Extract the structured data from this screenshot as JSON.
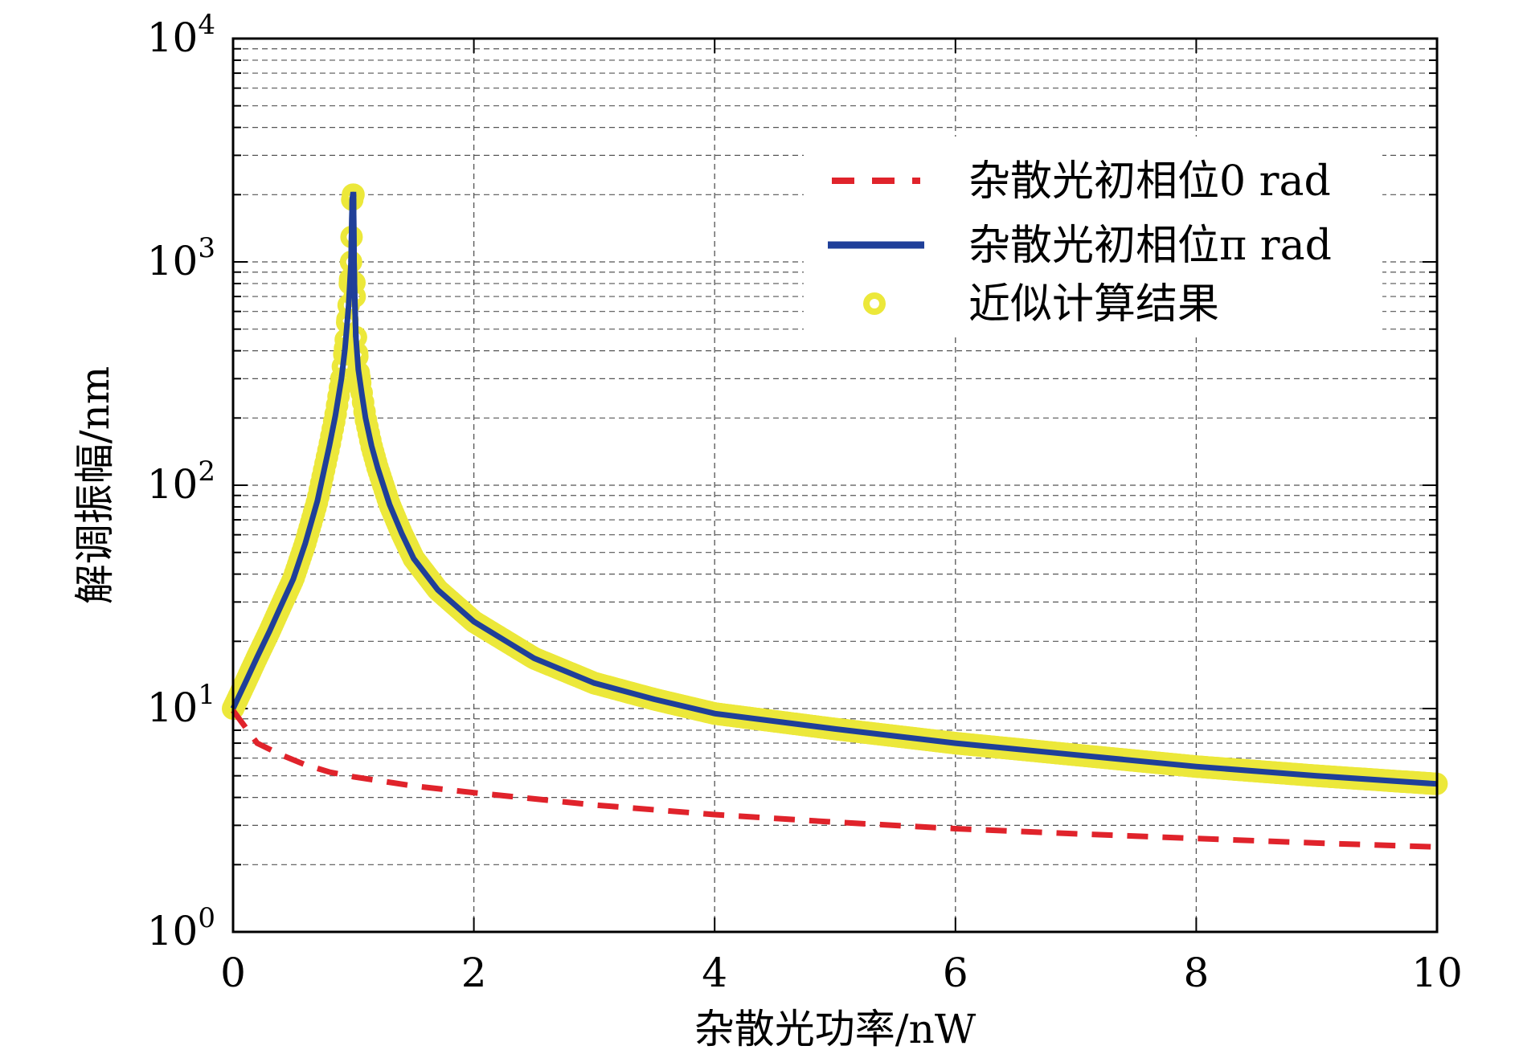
{
  "chart_data": {
    "type": "line",
    "xlabel": "杂散光功率/nW",
    "ylabel": "解调振幅/nm",
    "xlim": [
      0,
      10
    ],
    "ylim": [
      1,
      10000
    ],
    "yscale": "log",
    "grid": true,
    "legend_position": "top-right",
    "x_ticks": [
      "0",
      "2",
      "4",
      "6",
      "8",
      "10"
    ],
    "y_ticks": [
      {
        "base": "10",
        "exp": "0"
      },
      {
        "base": "10",
        "exp": "1"
      },
      {
        "base": "10",
        "exp": "2"
      },
      {
        "base": "10",
        "exp": "3"
      },
      {
        "base": "10",
        "exp": "4"
      }
    ],
    "series": [
      {
        "name": "杂散光初相位0 rad",
        "style": "dashed",
        "color": "#e0232b",
        "x": [
          0,
          0.2,
          0.4,
          0.6,
          0.8,
          1.0,
          1.5,
          2,
          3,
          4,
          5,
          6,
          7,
          8,
          9,
          10
        ],
        "y": [
          9.8,
          7.0,
          6.2,
          5.6,
          5.2,
          4.95,
          4.5,
          4.2,
          3.7,
          3.35,
          3.1,
          2.9,
          2.75,
          2.62,
          2.5,
          2.4
        ]
      },
      {
        "name": "杂散光初相位π rad",
        "style": "solid",
        "color": "#1f3f99",
        "x": [
          0,
          0.1,
          0.2,
          0.3,
          0.4,
          0.5,
          0.6,
          0.7,
          0.8,
          0.85,
          0.9,
          0.93,
          0.96,
          0.98,
          0.99,
          0.995,
          1.0,
          1.005,
          1.01,
          1.02,
          1.04,
          1.07,
          1.1,
          1.15,
          1.2,
          1.3,
          1.4,
          1.5,
          1.7,
          2.0,
          2.5,
          3,
          3.5,
          4,
          5,
          6,
          7,
          8,
          9,
          10
        ],
        "y": [
          10,
          13,
          17,
          22,
          29,
          38,
          55,
          85,
          150,
          205,
          300,
          410,
          640,
          1000,
          1900,
          2000,
          2000,
          1000,
          700,
          460,
          330,
          255,
          200,
          150,
          120,
          82,
          61,
          47,
          34,
          24.5,
          16.8,
          13,
          11,
          9.5,
          8.1,
          7.0,
          6.2,
          5.5,
          5.0,
          4.6
        ]
      },
      {
        "name": "近似计算结果",
        "style": "markers",
        "color": "#ece83a"
      }
    ]
  }
}
